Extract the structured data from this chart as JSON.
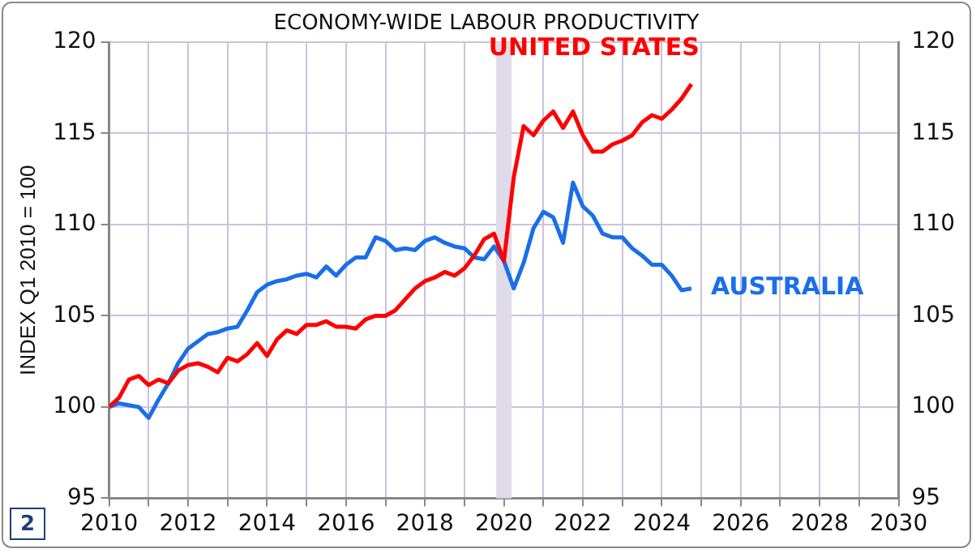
{
  "chart_data": {
    "type": "line",
    "title": "ECONOMY-WIDE LABOUR PRODUCTIVITY",
    "ylabel": "INDEX Q1 2010 = 100",
    "x": [
      2010,
      2010.25,
      2010.5,
      2010.75,
      2011,
      2011.25,
      2011.5,
      2011.75,
      2012,
      2012.25,
      2012.5,
      2012.75,
      2013,
      2013.25,
      2013.5,
      2013.75,
      2014,
      2014.25,
      2014.5,
      2014.75,
      2015,
      2015.25,
      2015.5,
      2015.75,
      2016,
      2016.25,
      2016.5,
      2016.75,
      2017,
      2017.25,
      2017.5,
      2017.75,
      2018,
      2018.25,
      2018.5,
      2018.75,
      2019,
      2019.25,
      2019.5,
      2019.75,
      2020,
      2020.25,
      2020.5,
      2020.75,
      2021,
      2021.25,
      2021.5,
      2021.75,
      2022,
      2022.25,
      2022.5,
      2022.75,
      2023,
      2023.25,
      2023.5,
      2023.75,
      2024,
      2024.25,
      2024.5,
      2024.75
    ],
    "series": [
      {
        "name": "UNITED STATES",
        "color": "#ff0000",
        "values": [
          100,
          100.5,
          101.5,
          101.7,
          101.2,
          101.5,
          101.3,
          102.0,
          102.3,
          102.4,
          102.2,
          101.9,
          102.7,
          102.5,
          102.9,
          103.5,
          102.8,
          103.7,
          104.2,
          104.0,
          104.5,
          104.5,
          104.7,
          104.4,
          104.4,
          104.3,
          104.8,
          105.0,
          105.0,
          105.3,
          105.9,
          106.5,
          106.9,
          107.1,
          107.4,
          107.2,
          107.6,
          108.3,
          109.2,
          109.5,
          108.0,
          112.6,
          115.4,
          114.9,
          115.7,
          116.2,
          115.3,
          116.2,
          114.9,
          114.0,
          114.0,
          114.4,
          114.6,
          114.9,
          115.6,
          116.0,
          115.8,
          116.3,
          116.9,
          117.7
        ]
      },
      {
        "name": "AUSTRALIA",
        "color": "#1a6fe8",
        "values": [
          100,
          100.2,
          100.1,
          100.0,
          99.4,
          100.4,
          101.3,
          102.4,
          103.2,
          103.6,
          104.0,
          104.1,
          104.3,
          104.4,
          105.3,
          106.3,
          106.7,
          106.9,
          107.0,
          107.2,
          107.3,
          107.1,
          107.7,
          107.2,
          107.8,
          108.2,
          108.2,
          109.3,
          109.1,
          108.6,
          108.7,
          108.6,
          109.1,
          109.3,
          109.0,
          108.8,
          108.7,
          108.2,
          108.1,
          108.8,
          108.0,
          106.5,
          107.9,
          109.8,
          110.7,
          110.4,
          109.0,
          112.3,
          111.0,
          110.5,
          109.5,
          109.3,
          109.3,
          108.7,
          108.3,
          107.8,
          107.8,
          107.2,
          106.4,
          106.5
        ]
      }
    ],
    "xlim": [
      2010,
      2030
    ],
    "xticks": [
      2010,
      {
        "value": 2011,
        "label": null
      },
      2012,
      {
        "value": 2013,
        "label": null
      },
      2014,
      {
        "value": 2015,
        "label": null
      },
      2016,
      {
        "value": 2017,
        "label": null
      },
      2018,
      {
        "value": 2019,
        "label": null
      },
      2020,
      {
        "value": 2021,
        "label": null
      },
      2022,
      {
        "value": 2023,
        "label": null
      },
      2024,
      {
        "value": 2025,
        "label": null
      },
      2026,
      {
        "value": 2027,
        "label": null
      },
      2028,
      {
        "value": 2029,
        "label": null
      },
      2030
    ],
    "ylim": [
      95,
      120
    ],
    "yticks": [
      95,
      100,
      105,
      110,
      115,
      120
    ],
    "y2lim": [
      95,
      120
    ],
    "y2ticks": [
      95,
      100,
      105,
      110,
      115,
      120
    ],
    "bands": [
      {
        "axis": "x",
        "from": 2019.8,
        "to": 2020.2,
        "color": "#e0dbe8"
      }
    ],
    "annotations": [
      "2"
    ],
    "grid": true,
    "legend": false,
    "marker": "none",
    "line_style": "solid"
  }
}
